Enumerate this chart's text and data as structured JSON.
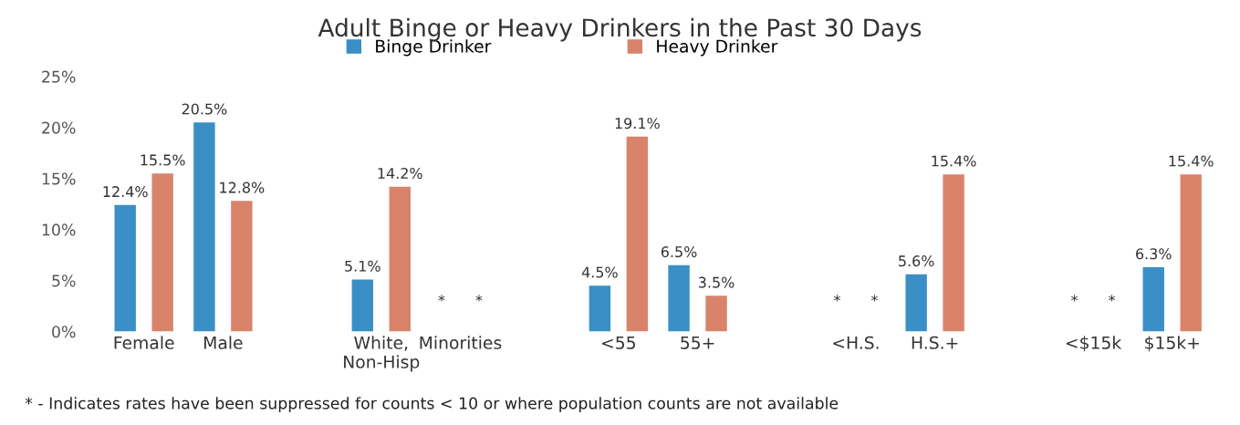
{
  "chart_data": {
    "type": "bar",
    "title": "Adult Binge or Heavy Drinkers in the Past 30 Days",
    "categories": [
      "Female",
      "Male",
      null,
      "White,\nNon-Hisp",
      "Minorities",
      null,
      "<55",
      "55+",
      null,
      "<H.S.",
      "H.S.+",
      null,
      "<$15k",
      "$15k+"
    ],
    "series": [
      {
        "name": "Binge Drinker",
        "color": "#3a8fc6",
        "values": [
          12.4,
          20.5,
          null,
          5.1,
          null,
          null,
          4.5,
          6.5,
          null,
          null,
          5.6,
          null,
          null,
          6.3
        ],
        "value_labels": [
          "12.4%",
          "20.5%",
          null,
          "5.1%",
          "*",
          null,
          "4.5%",
          "6.5%",
          null,
          "*",
          "5.6%",
          null,
          "*",
          "6.3%"
        ]
      },
      {
        "name": "Heavy Drinker",
        "color": "#d9836b",
        "values": [
          15.5,
          12.8,
          null,
          14.2,
          null,
          null,
          19.1,
          3.5,
          null,
          null,
          15.4,
          null,
          null,
          15.4
        ],
        "value_labels": [
          "15.5%",
          "12.8%",
          null,
          "14.2%",
          "*",
          null,
          "19.1%",
          "3.5%",
          null,
          "*",
          "15.4%",
          null,
          "*",
          "15.4%"
        ]
      }
    ],
    "ylim": [
      0,
      25
    ],
    "yticks": [
      {
        "value": 0,
        "label": "0%"
      },
      {
        "value": 5,
        "label": "5%"
      },
      {
        "value": 10,
        "label": "10%"
      },
      {
        "value": 15,
        "label": "15%"
      },
      {
        "value": 20,
        "label": "20%"
      },
      {
        "value": 25,
        "label": "25%"
      }
    ],
    "grid": false,
    "legend": "top",
    "annotations": [
      "* - Indicates rates have been suppressed for counts < 10 or where population counts are not available"
    ]
  }
}
